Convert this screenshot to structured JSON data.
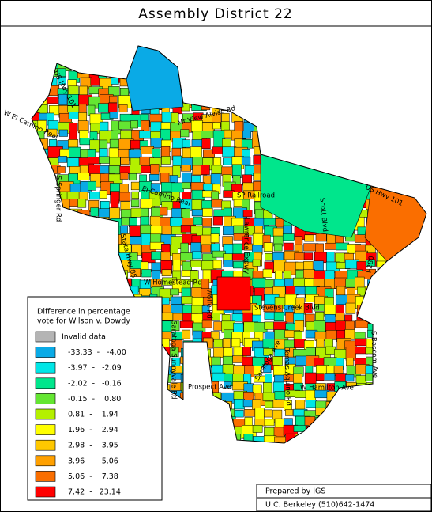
{
  "title": "Assembly District 22",
  "legend": {
    "title": [
      "Difference in percentage",
      "vote for Wilson v. Dowdy"
    ],
    "items": [
      {
        "label": "Invalid data",
        "color": "#b4b4b4"
      },
      {
        "label": "-33.33  -   -4.00",
        "color": "#0aaae6"
      },
      {
        "label": "-3.97  -   -2.09",
        "color": "#00e6e6"
      },
      {
        "label": "-2.02  -   -0.16",
        "color": "#00e68c"
      },
      {
        "label": "-0.15  -    0.80",
        "color": "#64e632"
      },
      {
        "label": "0.81  -    1.94",
        "color": "#b4f000"
      },
      {
        "label": "1.96  -    2.94",
        "color": "#ffff00"
      },
      {
        "label": "2.98  -    3.95",
        "color": "#ffc800"
      },
      {
        "label": "3.96  -    5.06",
        "color": "#ffa000"
      },
      {
        "label": "5.06  -    7.38",
        "color": "#fa6e00"
      },
      {
        "label": "7.42  -   23.14",
        "color": "#ff0000"
      }
    ]
  },
  "roads": [
    "US Hwy 101",
    "W El Camino Real",
    "Mt View Alviso Rd",
    "S Springer Rd",
    "El Camino Real",
    "SP Railroad",
    "Scott Blvd",
    "US Hwy 101",
    "State Hwy 85",
    "Lawrence Expwy",
    "W Homestead Rd",
    "Wolfe Rd",
    "Stevens Creek Blvd",
    "I-280",
    "Saratoga Sunnyvale Rd",
    "S Bascom Ave",
    "Tomas Aquino Rd",
    "Saratoga Ave",
    "Prospect Ave",
    "W Hamilton Ave"
  ],
  "credits": [
    "Prepared by IGS",
    "U.C. Berkeley (510)642-1474"
  ]
}
